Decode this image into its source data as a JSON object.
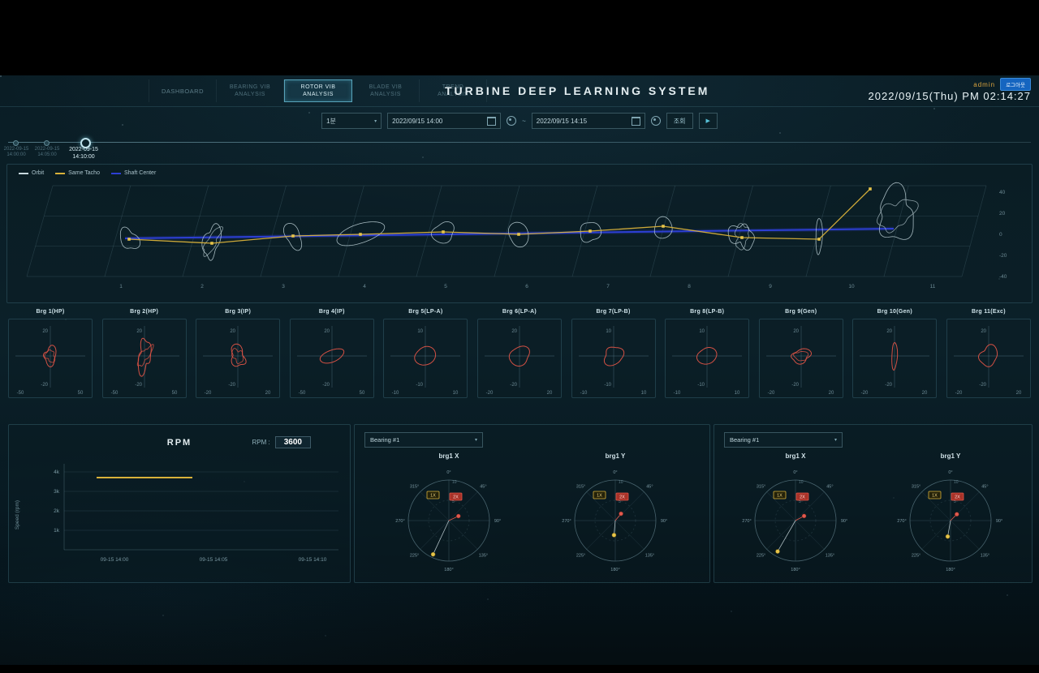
{
  "header": {
    "tabs": [
      {
        "id": "dashboard",
        "lines": [
          "DASHBOARD"
        ],
        "active": false
      },
      {
        "id": "bearing-vib-analysis",
        "lines": [
          "BEARING VIB",
          "ANALYSIS"
        ],
        "active": false
      },
      {
        "id": "rotor-vib-analysis",
        "lines": [
          "ROTOR VIB",
          "ANALYSIS"
        ],
        "active": true
      },
      {
        "id": "blade-vib-analysis",
        "lines": [
          "BLADE VIB",
          "ANALYSIS"
        ],
        "active": false
      },
      {
        "id": "trend-analysis",
        "lines": [
          "TREND",
          "ANALYSIS"
        ],
        "active": false
      }
    ],
    "title": "TURBINE DEEP LEARNING SYSTEM",
    "user": "admin",
    "logout_label": "로그아웃",
    "datetime": "2022/09/15(Thu) PM 02:14:27"
  },
  "controls": {
    "interval": "1분",
    "start": "2022/09/15 14:00",
    "separator": "~",
    "end": "2022/09/15 14:15",
    "search_label": "조회",
    "play_label": "▶"
  },
  "timeline": {
    "points": [
      {
        "date": "2022-09-15",
        "time": "14:00:00",
        "active": false
      },
      {
        "date": "2022-09-15",
        "time": "14:05:00",
        "active": false
      },
      {
        "date": "2022-09-15",
        "time": "14:10:00",
        "active": true
      }
    ]
  },
  "orbit3d": {
    "legend": [
      {
        "label": "Orbit",
        "color": "#c7d8de"
      },
      {
        "label": "Same Tacho",
        "color": "#d8b13a"
      },
      {
        "label": "Shaft Center",
        "color": "#2d3fd4"
      }
    ],
    "x_ticks": [
      "1",
      "2",
      "3",
      "4",
      "5",
      "6",
      "7",
      "8",
      "9",
      "10",
      "11"
    ],
    "z_ticks": [
      "40",
      "20",
      "0",
      "-20",
      "-40"
    ]
  },
  "bearings": [
    {
      "name": "Brg 1(HP)",
      "y_max": "20",
      "y_min": "-20",
      "x_min": "-50",
      "x_max": "50"
    },
    {
      "name": "Brg 2(HP)",
      "y_max": "20",
      "y_min": "-20",
      "x_min": "-50",
      "x_max": "50"
    },
    {
      "name": "Brg 3(IP)",
      "y_max": "20",
      "y_min": "-20",
      "x_min": "-20",
      "x_max": "20"
    },
    {
      "name": "Brg 4(IP)",
      "y_max": "20",
      "y_min": "-20",
      "x_min": "-50",
      "x_max": "50"
    },
    {
      "name": "Brg 5(LP-A)",
      "y_max": "10",
      "y_min": "-10",
      "x_min": "-10",
      "x_max": "10"
    },
    {
      "name": "Brg 6(LP-A)",
      "y_max": "20",
      "y_min": "-20",
      "x_min": "-20",
      "x_max": "20"
    },
    {
      "name": "Brg 7(LP-B)",
      "y_max": "10",
      "y_min": "-10",
      "x_min": "-10",
      "x_max": "10"
    },
    {
      "name": "Brg 8(LP-B)",
      "y_max": "10",
      "y_min": "-10",
      "x_min": "-10",
      "x_max": "10"
    },
    {
      "name": "Brg 9(Gen)",
      "y_max": "20",
      "y_min": "-20",
      "x_min": "-20",
      "x_max": "20"
    },
    {
      "name": "Brg 10(Gen)",
      "y_max": "20",
      "y_min": "-20",
      "x_min": "-20",
      "x_max": "20"
    },
    {
      "name": "Brg 11(Exc)",
      "y_max": "20",
      "y_min": "-20",
      "x_min": "-20",
      "x_max": "20"
    }
  ],
  "rpm": {
    "title": "RPM",
    "label": "RPM :",
    "value": "3600",
    "ylabel": "Speed (rpm)",
    "y_ticks": [
      "4k",
      "3k",
      "2k",
      "1k"
    ],
    "x_ticks": [
      "09-15 14:00",
      "09-15 14:05",
      "09-15 14:10"
    ]
  },
  "polar_panels": [
    {
      "selector": "Bearing #1",
      "charts": [
        {
          "title": "brg1 X"
        },
        {
          "title": "brg1 Y"
        }
      ]
    },
    {
      "selector": "Bearing #1",
      "charts": [
        {
          "title": "brg1 X"
        },
        {
          "title": "brg1 Y"
        }
      ]
    }
  ],
  "polar": {
    "angle_labels": [
      "0°",
      "45°",
      "90°",
      "135°",
      "180°",
      "225°",
      "270°",
      "315°"
    ],
    "r_ticks": [
      "5",
      "10"
    ],
    "tags": [
      {
        "label": "1X"
      },
      {
        "label": "2X"
      }
    ]
  }
}
